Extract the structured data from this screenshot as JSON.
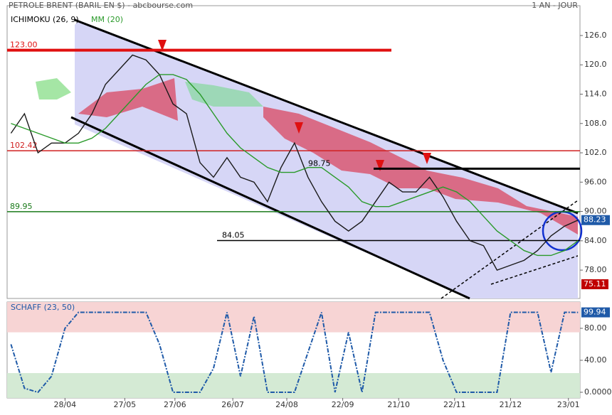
{
  "chart_data": [
    {
      "type": "line",
      "title": "PETROLE BRENT (BARIL EN $) - abcbourse.com",
      "period": "1 AN - JOUR",
      "indicator_label": "ICHIMOKU (26, 9)",
      "x": [
        -28,
        -21,
        -14,
        -7,
        0,
        7,
        14,
        21,
        28,
        35,
        42,
        49,
        56,
        63,
        70,
        77,
        84,
        91,
        98,
        105,
        112,
        119,
        126,
        133,
        140,
        147,
        154,
        161,
        168,
        175,
        182,
        189,
        196,
        203,
        210,
        217,
        224,
        231,
        238,
        245,
        252,
        259,
        266
      ],
      "xlim": [
        -30,
        267
      ],
      "xticks": [
        {
          "value": 0,
          "label": "28/04"
        },
        {
          "value": 31,
          "label": "27/05"
        },
        {
          "value": 57,
          "label": "27/06"
        },
        {
          "value": 87,
          "label": "26/07"
        },
        {
          "value": 115,
          "label": "24/08"
        },
        {
          "value": 144,
          "label": "22/09"
        },
        {
          "value": 173,
          "label": "21/10"
        },
        {
          "value": 202,
          "label": "22/11"
        },
        {
          "value": 231,
          "label": "21/12"
        },
        {
          "value": 261,
          "label": "23/01"
        }
      ],
      "ylim": [
        72.2,
        132.1
      ],
      "yticks": [
        {
          "value": 78,
          "label": "78.00"
        },
        {
          "value": 84,
          "label": "84.00"
        },
        {
          "value": 90,
          "label": "90.00"
        },
        {
          "value": 96,
          "label": "96.00"
        },
        {
          "value": 102,
          "label": "102.0"
        },
        {
          "value": 108,
          "label": "108.0"
        },
        {
          "value": 114,
          "label": "114.0"
        },
        {
          "value": 120,
          "label": "120.0"
        },
        {
          "value": 126,
          "label": "126.0"
        }
      ],
      "series": [
        {
          "color": "#1a1a1a",
          "values": [
            106,
            110,
            102,
            104,
            104,
            106,
            110,
            116,
            119,
            122,
            121,
            118,
            112,
            110,
            100,
            97,
            101,
            97,
            96,
            92,
            99,
            104,
            97,
            92,
            88,
            86,
            88,
            92,
            96,
            94,
            94,
            97,
            93,
            88,
            84,
            83,
            78,
            79,
            80,
            82,
            85,
            87,
            88.23
          ],
          "last_label": "88.23"
        },
        {
          "name": "MM (20)",
          "color": "#2a9a2a",
          "values": [
            108,
            107,
            106,
            105,
            104,
            104,
            105,
            107,
            110,
            113,
            116,
            118,
            118,
            117,
            114,
            110,
            106,
            103,
            101,
            99,
            98,
            98,
            99,
            99,
            97,
            95,
            92,
            91,
            91,
            92,
            93,
            94,
            95,
            94,
            92,
            89,
            86,
            84,
            82,
            81,
            81,
            82,
            84
          ]
        }
      ],
      "levels": {
        "values": [
          123,
          102.42,
          98.75,
          89.95,
          84.05,
          75.11
        ],
        "value_labels": [
          "123.00",
          "102.42",
          "98.75",
          "89.95",
          "84.05",
          "75.11"
        ],
        "colors": [
          "#e01010",
          "#d02020",
          "#000000",
          "#1a7a1a",
          "#000000",
          "#c00000"
        ]
      }
    },
    {
      "type": "line",
      "x": [
        -28,
        -21,
        -14,
        -7,
        0,
        7,
        14,
        21,
        28,
        35,
        42,
        49,
        56,
        63,
        70,
        77,
        84,
        91,
        98,
        105,
        112,
        119,
        126,
        133,
        140,
        147,
        154,
        161,
        168,
        175,
        182,
        189,
        196,
        203,
        210,
        217,
        224,
        231,
        238,
        245,
        252,
        259,
        266
      ],
      "xlim": [
        -30,
        267
      ],
      "ylim": [
        -7.1,
        112.9
      ],
      "yticks": [
        {
          "value": 0,
          "label": "0.0000"
        },
        {
          "value": 40,
          "label": "40.00"
        },
        {
          "value": 80,
          "label": "80.00"
        }
      ],
      "zones": [
        {
          "from": 75,
          "to": 112.9,
          "color": "#f7d4d4"
        },
        {
          "from": -7.1,
          "to": 24,
          "color": "#d4ead4"
        }
      ],
      "series": [
        {
          "name": "SCHAFF (23, 50)",
          "color": "#1f5aa8",
          "values": [
            60,
            5,
            0,
            20,
            80,
            100,
            100,
            100,
            100,
            100,
            100,
            60,
            0,
            0,
            0,
            30,
            100,
            20,
            95,
            0,
            0,
            0,
            50,
            100,
            0,
            75,
            0,
            100,
            100,
            100,
            100,
            100,
            40,
            0,
            0,
            0,
            0,
            100,
            100,
            100,
            25,
            100,
            99.94
          ],
          "last_label": "99.94"
        }
      ]
    }
  ]
}
